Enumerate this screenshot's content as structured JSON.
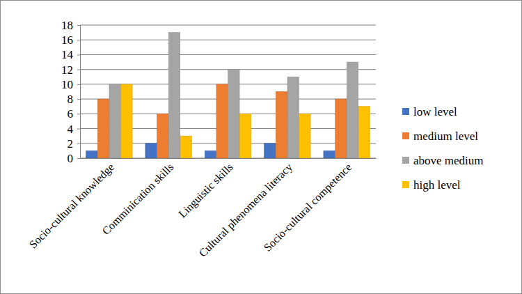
{
  "chart_data": {
    "type": "bar",
    "categories": [
      "Socio-cultural knowledge",
      "Comminication skills",
      "Linguistic skills",
      "Cultural phenomena literacy",
      "Socio-cultural competence"
    ],
    "series": [
      {
        "name": "low level",
        "color": "#4472c4",
        "values": [
          1,
          2,
          1,
          2,
          1
        ]
      },
      {
        "name": "medium level",
        "color": "#ed7d31",
        "values": [
          8,
          6,
          10,
          9,
          8
        ]
      },
      {
        "name": "above medium",
        "color": "#a5a5a5",
        "values": [
          10,
          17,
          12,
          11,
          13
        ]
      },
      {
        "name": "high level",
        "color": "#ffc000",
        "values": [
          10,
          3,
          6,
          6,
          7
        ]
      }
    ],
    "ylim": [
      0,
      18
    ],
    "yticks": [
      0,
      2,
      4,
      6,
      8,
      10,
      12,
      14,
      16,
      18
    ],
    "grid": true,
    "legend": "right"
  }
}
